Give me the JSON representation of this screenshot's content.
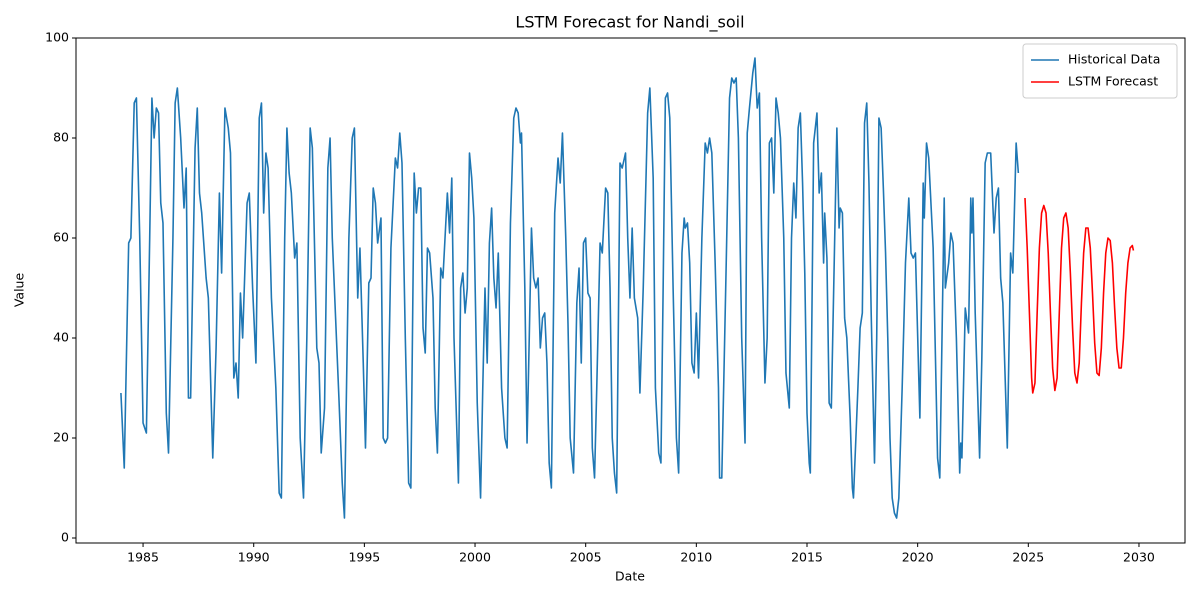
{
  "chart_data": {
    "type": "line",
    "title": "LSTM Forecast for Nandi_soil",
    "xlabel": "Date",
    "ylabel": "Value",
    "xlim": [
      1981.97,
      2032.08
    ],
    "ylim": [
      -1,
      100
    ],
    "xticks": [
      1985,
      1990,
      1995,
      2000,
      2005,
      2010,
      2015,
      2020,
      2025,
      2030
    ],
    "yticks": [
      0,
      20,
      40,
      60,
      80,
      100
    ],
    "grid": false,
    "legend": "upper right",
    "series": [
      {
        "name": "Historical Data",
        "color": "#1f77b4",
        "x": [
          1984.0,
          1984.15,
          1984.35,
          1984.45,
          1984.6,
          1984.7,
          1984.85,
          1985.0,
          1985.15,
          1985.3,
          1985.4,
          1985.5,
          1985.6,
          1985.7,
          1985.8,
          1985.9,
          1986.05,
          1986.15,
          1986.35,
          1986.45,
          1986.55,
          1986.7,
          1986.85,
          1986.95,
          1987.05,
          1987.15,
          1987.35,
          1987.45,
          1987.55,
          1987.65,
          1987.85,
          1987.95,
          1988.15,
          1988.3,
          1988.45,
          1988.55,
          1988.7,
          1988.85,
          1988.95,
          1989.1,
          1989.2,
          1989.3,
          1989.4,
          1989.5,
          1989.7,
          1989.8,
          1989.95,
          1990.1,
          1990.25,
          1990.35,
          1990.45,
          1990.55,
          1990.65,
          1990.8,
          1991.0,
          1991.15,
          1991.25,
          1991.4,
          1991.5,
          1991.6,
          1991.7,
          1991.85,
          1991.95,
          1992.1,
          1992.25,
          1992.4,
          1992.55,
          1992.65,
          1992.85,
          1992.95,
          1993.05,
          1993.2,
          1993.35,
          1993.45,
          1993.55,
          1993.7,
          1993.85,
          1994.0,
          1994.1,
          1994.3,
          1994.45,
          1994.55,
          1994.7,
          1994.8,
          1994.95,
          1995.05,
          1995.2,
          1995.3,
          1995.4,
          1995.5,
          1995.6,
          1995.75,
          1995.85,
          1995.95,
          1996.05,
          1996.2,
          1996.4,
          1996.5,
          1996.6,
          1996.7,
          1996.85,
          1997.0,
          1997.1,
          1997.25,
          1997.35,
          1997.45,
          1997.55,
          1997.65,
          1997.75,
          1997.85,
          1997.95,
          1998.1,
          1998.2,
          1998.3,
          1998.45,
          1998.55,
          1998.75,
          1998.85,
          1998.95,
          1999.05,
          1999.25,
          1999.35,
          1999.45,
          1999.55,
          1999.65,
          1999.75,
          1999.85,
          1999.95,
          2000.1,
          2000.25,
          2000.35,
          2000.45,
          2000.55,
          2000.65,
          2000.75,
          2000.85,
          2000.95,
          2001.05,
          2001.2,
          2001.35,
          2001.45,
          2001.6,
          2001.75,
          2001.85,
          2001.95,
          2002.05,
          2002.1,
          2002.25,
          2002.35,
          2002.45,
          2002.55,
          2002.65,
          2002.75,
          2002.85,
          2002.95,
          2003.05,
          2003.15,
          2003.25,
          2003.35,
          2003.45,
          2003.6,
          2003.75,
          2003.85,
          2003.95,
          2004.1,
          2004.2,
          2004.3,
          2004.45,
          2004.6,
          2004.7,
          2004.8,
          2004.9,
          2005.0,
          2005.1,
          2005.2,
          2005.3,
          2005.4,
          2005.5,
          2005.65,
          2005.75,
          2005.9,
          2006.0,
          2006.1,
          2006.2,
          2006.3,
          2006.4,
          2006.55,
          2006.65,
          2006.8,
          2006.9,
          2007.0,
          2007.1,
          2007.2,
          2007.35,
          2007.45,
          2007.6,
          2007.8,
          2007.9,
          2008.05,
          2008.15,
          2008.3,
          2008.4,
          2008.5,
          2008.6,
          2008.7,
          2008.8,
          2008.95,
          2009.1,
          2009.2,
          2009.35,
          2009.45,
          2009.5,
          2009.6,
          2009.7,
          2009.8,
          2009.9,
          2010.0,
          2010.1,
          2010.25,
          2010.4,
          2010.5,
          2010.6,
          2010.7,
          2010.85,
          2011.0,
          2011.05,
          2011.15,
          2011.35,
          2011.5,
          2011.6,
          2011.7,
          2011.8,
          2011.9,
          2012.05,
          2012.2,
          2012.3,
          2012.4,
          2012.55,
          2012.65,
          2012.75,
          2012.85,
          2012.95,
          2013.1,
          2013.2,
          2013.3,
          2013.4,
          2013.5,
          2013.6,
          2013.7,
          2013.8,
          2013.95,
          2014.05,
          2014.2,
          2014.3,
          2014.4,
          2014.5,
          2014.6,
          2014.7,
          2014.8,
          2014.9,
          2015.0,
          2015.1,
          2015.15,
          2015.3,
          2015.45,
          2015.55,
          2015.65,
          2015.75,
          2015.8,
          2015.9,
          2016.0,
          2016.1,
          2016.35,
          2016.45,
          2016.5,
          2016.6,
          2016.7,
          2016.8,
          2016.95,
          2017.05,
          2017.1,
          2017.3,
          2017.4,
          2017.5,
          2017.6,
          2017.7,
          2017.8,
          2017.9,
          2018.05,
          2018.15,
          2018.25,
          2018.35,
          2018.45,
          2018.55,
          2018.65,
          2018.75,
          2018.85,
          2018.95,
          2019.05,
          2019.15,
          2019.3,
          2019.45,
          2019.6,
          2019.7,
          2019.8,
          2019.9,
          2020.1,
          2020.25,
          2020.3,
          2020.4,
          2020.5,
          2020.7,
          2020.9,
          2021.0,
          2021.2,
          2021.25,
          2021.4,
          2021.5,
          2021.6,
          2021.75,
          2021.9,
          2021.95,
          2022.0,
          2022.15,
          2022.3,
          2022.4,
          2022.45,
          2022.5,
          2022.6,
          2022.8,
          2022.9,
          2023.05,
          2023.15,
          2023.3,
          2023.45,
          2023.55,
          2023.65,
          2023.75,
          2023.85,
          2024.05,
          2024.2,
          2024.3,
          2024.45,
          2024.55
        ],
        "values": [
          29,
          14,
          59,
          60,
          87,
          88,
          60,
          23,
          21,
          60,
          88,
          80,
          86,
          85,
          67,
          63,
          25,
          17,
          60,
          87,
          90,
          80,
          66,
          74,
          28,
          28,
          78,
          86,
          69,
          65,
          52,
          48,
          16,
          38,
          69,
          53,
          86,
          82,
          77,
          32,
          35,
          28,
          49,
          40,
          67,
          69,
          50,
          35,
          84,
          87,
          65,
          77,
          74,
          48,
          30,
          9,
          8,
          60,
          82,
          73,
          69,
          56,
          59,
          20,
          8,
          40,
          82,
          78,
          38,
          35,
          17,
          26,
          74,
          80,
          60,
          44,
          28,
          11,
          4,
          60,
          80,
          82,
          48,
          58,
          35,
          18,
          51,
          52,
          70,
          67,
          59,
          64,
          20,
          19,
          20,
          58,
          76,
          74,
          81,
          75,
          40,
          11,
          10,
          73,
          65,
          70,
          70,
          42,
          37,
          58,
          57,
          48,
          26,
          17,
          54,
          52,
          69,
          61,
          72,
          40,
          11,
          50,
          53,
          45,
          50,
          77,
          72,
          64,
          27,
          8,
          30,
          50,
          35,
          59,
          66,
          52,
          46,
          57,
          30,
          20,
          18,
          63,
          84,
          86,
          85,
          79,
          81,
          50,
          19,
          40,
          62,
          52,
          50,
          52,
          38,
          44,
          45,
          35,
          15,
          10,
          65,
          76,
          71,
          81,
          60,
          43,
          20,
          13,
          47,
          54,
          35,
          59,
          60,
          49,
          48,
          18,
          12,
          30,
          59,
          57,
          70,
          69,
          50,
          20,
          13,
          9,
          75,
          74,
          77,
          60,
          48,
          62,
          48,
          44,
          29,
          50,
          85,
          90,
          72,
          30,
          17,
          15,
          50,
          88,
          89,
          84,
          50,
          20,
          13,
          57,
          64,
          62,
          63,
          55,
          35,
          33,
          45,
          32,
          60,
          79,
          77,
          80,
          77,
          55,
          30,
          12,
          12,
          55,
          88,
          92,
          91,
          92,
          80,
          40,
          19,
          81,
          86,
          93,
          96,
          86,
          89,
          60,
          31,
          40,
          79,
          80,
          69,
          88,
          85,
          80,
          60,
          33,
          26,
          60,
          71,
          64,
          82,
          85,
          71,
          53,
          25,
          15,
          13,
          79,
          85,
          69,
          73,
          55,
          65,
          56,
          27,
          26,
          82,
          62,
          66,
          65,
          44,
          40,
          24,
          10,
          8,
          30,
          42,
          45,
          83,
          87,
          71,
          45,
          15,
          40,
          84,
          82,
          70,
          57,
          40,
          20,
          8,
          5,
          4,
          8,
          30,
          55,
          68,
          57,
          56,
          57,
          24,
          71,
          64,
          79,
          76,
          58,
          16,
          12,
          68,
          50,
          55,
          61,
          59,
          40,
          13,
          19,
          16,
          46,
          41,
          68,
          61,
          68,
          45,
          16,
          36,
          75,
          77,
          77,
          61,
          68,
          70,
          52,
          47,
          18,
          57,
          53,
          79,
          73
        ]
      },
      {
        "name": "LSTM Forecast",
        "color": "#ff0000",
        "x": [
          2024.85,
          2024.95,
          2025.05,
          2025.15,
          2025.2,
          2025.3,
          2025.4,
          2025.5,
          2025.6,
          2025.7,
          2025.8,
          2025.9,
          2026.0,
          2026.1,
          2026.2,
          2026.3,
          2026.4,
          2026.5,
          2026.6,
          2026.7,
          2026.8,
          2026.9,
          2027.0,
          2027.1,
          2027.2,
          2027.3,
          2027.4,
          2027.5,
          2027.6,
          2027.7,
          2027.8,
          2027.9,
          2028.0,
          2028.1,
          2028.2,
          2028.3,
          2028.4,
          2028.5,
          2028.6,
          2028.7,
          2028.8,
          2028.9,
          2029.0,
          2029.1,
          2029.2,
          2029.3,
          2029.4,
          2029.5,
          2029.6,
          2029.7,
          2029.75
        ],
        "values": [
          68,
          58,
          45,
          32,
          29,
          31,
          45,
          58,
          65,
          66.5,
          65,
          57,
          45,
          34,
          29.5,
          32,
          45,
          58,
          64,
          65,
          62,
          53,
          42,
          33,
          31,
          35,
          47,
          57,
          62,
          62,
          58,
          49,
          39,
          33,
          32.5,
          38,
          49,
          57,
          60,
          59.5,
          55,
          46,
          38,
          34,
          34,
          40,
          49,
          55,
          58,
          58.5,
          57.5
        ]
      }
    ]
  }
}
